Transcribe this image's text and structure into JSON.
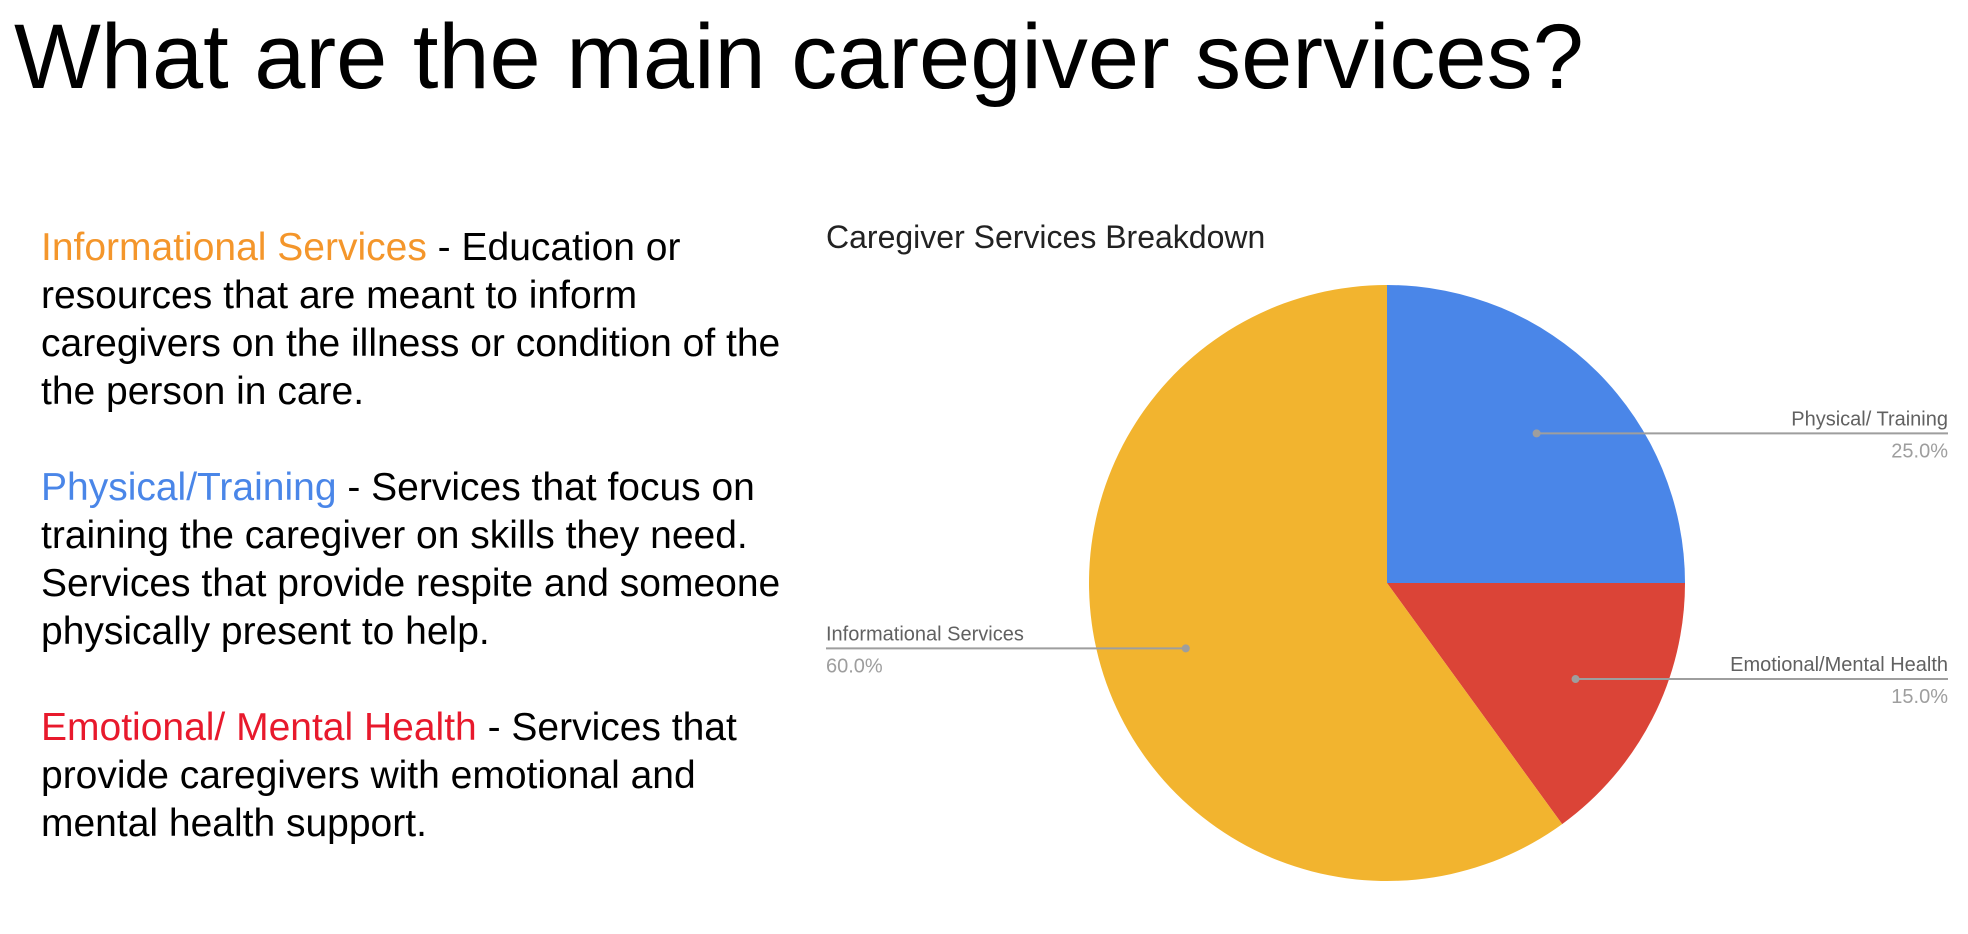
{
  "slide": {
    "title": "What are the main caregiver services?"
  },
  "descriptions": [
    {
      "term": "Informational Services",
      "text": " - Education or resources that are meant to inform caregivers on the illness or condition of the the person in care.",
      "color": "#f4962b"
    },
    {
      "term": "Physical/Training",
      "text": " - Services that focus on training the caregiver on skills they need. Services that provide respite and someone physically present to help.",
      "color": "#4a86e8"
    },
    {
      "term": "Emotional/ Mental Health",
      "text": " - Services that provide caregivers with emotional and mental health support.",
      "color": "#e8192c"
    }
  ],
  "chart_data": {
    "type": "pie",
    "title": "Caregiver Services Breakdown",
    "start_angle": "12 o'clock, clockwise",
    "legend": "labeled slices (no separate legend)",
    "slices": [
      {
        "label": "Physical/ Training",
        "value": 25.0,
        "value_label": "25.0%",
        "color": "#4a86e8",
        "label_side": "right"
      },
      {
        "label": "Emotional/Mental Health",
        "value": 15.0,
        "value_label": "15.0%",
        "color": "#db4437",
        "label_side": "right"
      },
      {
        "label": "Informational Services",
        "value": 60.0,
        "value_label": "60.0%",
        "color": "#f2b42f",
        "label_side": "left"
      }
    ]
  }
}
